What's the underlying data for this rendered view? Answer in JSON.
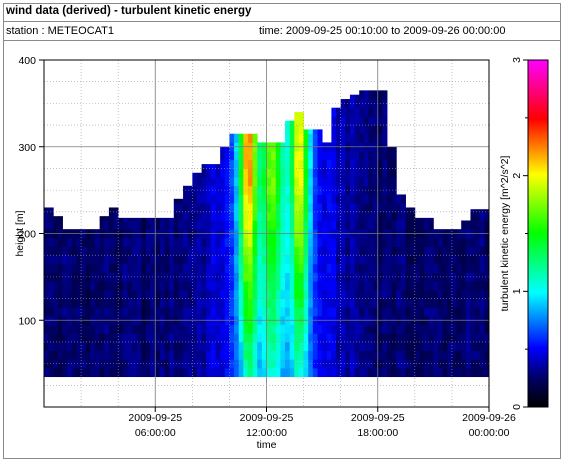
{
  "header": {
    "title": "wind data (derived) - turbulent kinetic energy",
    "station_label": "station : METEOCAT1",
    "time_label": "time: 2009-09-25 00:10:00 to 2009-09-26 00:00:00"
  },
  "chart_data": {
    "type": "heatmap",
    "title": "wind data (derived) - turbulent kinetic energy",
    "xlabel": "time",
    "ylabel": "height [m]",
    "colorbar_label": "turbulent kinetic energy [m^2/s^2]",
    "x_range_hours": [
      0,
      24
    ],
    "ylim": [
      0,
      400
    ],
    "clim": [
      0,
      3
    ],
    "grid": true,
    "x_ticks": [
      {
        "value": 6,
        "line1": "2009-09-25",
        "line2": "06:00:00"
      },
      {
        "value": 12,
        "line1": "2009-09-25",
        "line2": "12:00:00"
      },
      {
        "value": 18,
        "line1": "2009-09-25",
        "line2": "18:00:00"
      },
      {
        "value": 24,
        "line1": "2009-09-26",
        "line2": "00:00:00"
      }
    ],
    "y_ticks": [
      {
        "value": 100,
        "label": "100"
      },
      {
        "value": 200,
        "label": "200"
      },
      {
        "value": 300,
        "label": "300"
      },
      {
        "value": 400,
        "label": "400"
      }
    ],
    "colorbar_ticks": [
      {
        "value": 0,
        "label": "0"
      },
      {
        "value": 1,
        "label": "1"
      },
      {
        "value": 2,
        "label": "2"
      },
      {
        "value": 3,
        "label": "3"
      }
    ],
    "data_bottom_m": 35,
    "columns_hours_top_m": [
      [
        0,
        230
      ],
      [
        0.5,
        220
      ],
      [
        1,
        205
      ],
      [
        2,
        205
      ],
      [
        3,
        220
      ],
      [
        3.5,
        230
      ],
      [
        4,
        218
      ],
      [
        6,
        218
      ],
      [
        7,
        240
      ],
      [
        7.5,
        255
      ],
      [
        8,
        270
      ],
      [
        8.5,
        280
      ],
      [
        9,
        280
      ],
      [
        9.5,
        300
      ],
      [
        10,
        315
      ],
      [
        11,
        315
      ],
      [
        11.5,
        305
      ],
      [
        12,
        305
      ],
      [
        12.5,
        305
      ],
      [
        13,
        330
      ],
      [
        13.5,
        340
      ],
      [
        14,
        320
      ],
      [
        14.5,
        320
      ],
      [
        15,
        305
      ],
      [
        15.5,
        345
      ],
      [
        16,
        355
      ],
      [
        16.5,
        360
      ],
      [
        17,
        365
      ],
      [
        18,
        365
      ],
      [
        18.5,
        300
      ],
      [
        19,
        245
      ],
      [
        19.5,
        230
      ],
      [
        20,
        218
      ],
      [
        21,
        205
      ],
      [
        22,
        205
      ],
      [
        22.5,
        215
      ],
      [
        23,
        228
      ],
      [
        24,
        228
      ]
    ]
  }
}
